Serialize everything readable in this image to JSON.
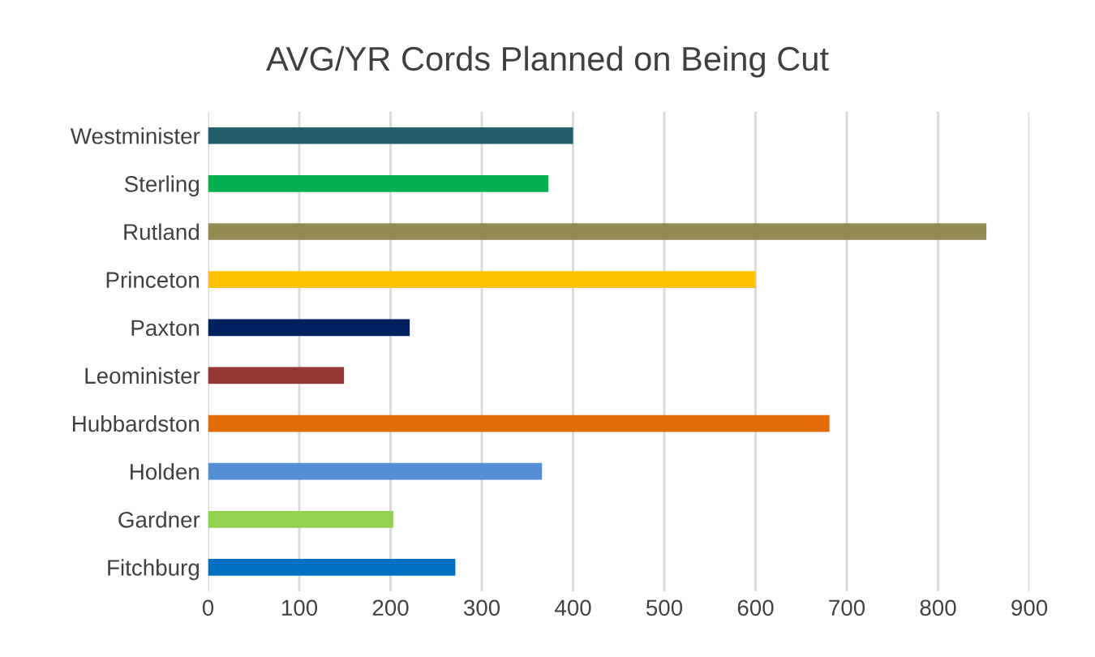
{
  "chart_data": {
    "type": "bar",
    "orientation": "horizontal",
    "title": "AVG/YR Cords Planned on Being Cut",
    "categories": [
      "Westminister",
      "Sterling",
      "Rutland",
      "Princeton",
      "Paxton",
      "Leominister",
      "Hubbardston",
      "Holden",
      "Gardner",
      "Fitchburg"
    ],
    "values": [
      400,
      373,
      853,
      600,
      221,
      149,
      681,
      366,
      203,
      271
    ],
    "colors": [
      "#255e6b",
      "#00b050",
      "#948a54",
      "#ffc000",
      "#002060",
      "#953735",
      "#e36c09",
      "#558ed5",
      "#92d050",
      "#0070c0"
    ],
    "xlim": [
      0,
      900
    ],
    "xticks": [
      0,
      100,
      200,
      300,
      400,
      500,
      600,
      700,
      800,
      900
    ],
    "grid": "x"
  }
}
